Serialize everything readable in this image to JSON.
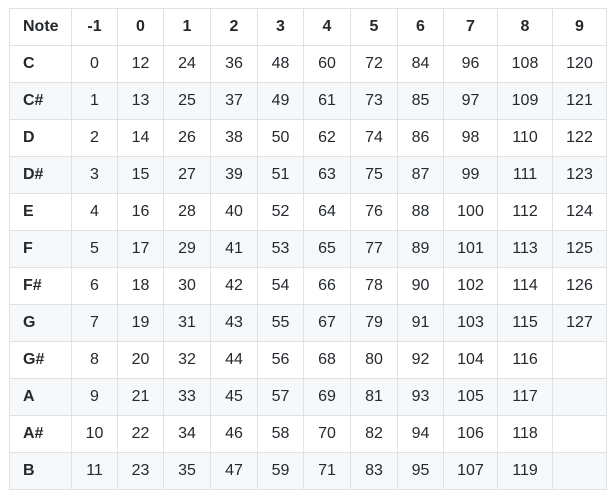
{
  "table": {
    "header": [
      "Note",
      "-1",
      "0",
      "1",
      "2",
      "3",
      "4",
      "5",
      "6",
      "7",
      "8",
      "9"
    ],
    "rows": [
      [
        "C",
        0,
        12,
        24,
        36,
        48,
        60,
        72,
        84,
        96,
        108,
        120
      ],
      [
        "C#",
        1,
        13,
        25,
        37,
        49,
        61,
        73,
        85,
        97,
        109,
        121
      ],
      [
        "D",
        2,
        14,
        26,
        38,
        50,
        62,
        74,
        86,
        98,
        110,
        122
      ],
      [
        "D#",
        3,
        15,
        27,
        39,
        51,
        63,
        75,
        87,
        99,
        111,
        123
      ],
      [
        "E",
        4,
        16,
        28,
        40,
        52,
        64,
        76,
        88,
        100,
        112,
        124
      ],
      [
        "F",
        5,
        17,
        29,
        41,
        53,
        65,
        77,
        89,
        101,
        113,
        125
      ],
      [
        "F#",
        6,
        18,
        30,
        42,
        54,
        66,
        78,
        90,
        102,
        114,
        126
      ],
      [
        "G",
        7,
        19,
        31,
        43,
        55,
        67,
        79,
        91,
        103,
        115,
        127
      ],
      [
        "G#",
        8,
        20,
        32,
        44,
        56,
        68,
        80,
        92,
        104,
        116
      ],
      [
        "A",
        9,
        21,
        33,
        45,
        57,
        69,
        81,
        93,
        105,
        117
      ],
      [
        "A#",
        10,
        22,
        34,
        46,
        58,
        70,
        82,
        94,
        106,
        118
      ],
      [
        "B",
        11,
        23,
        35,
        47,
        59,
        71,
        83,
        95,
        107,
        119
      ]
    ]
  }
}
